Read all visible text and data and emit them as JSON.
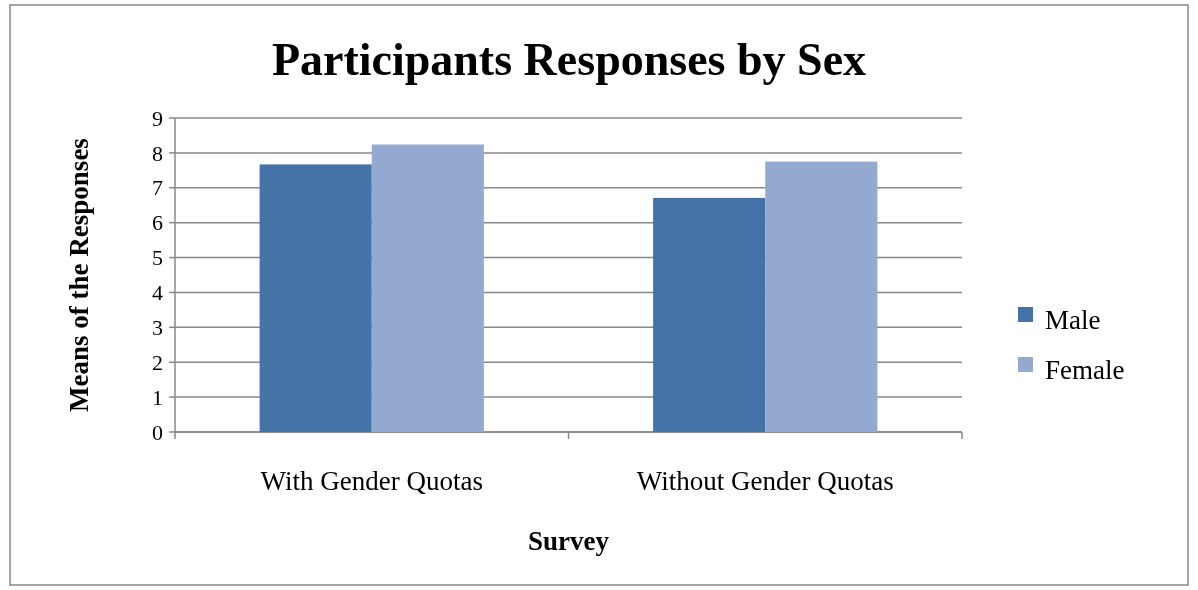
{
  "chart_data": {
    "type": "bar",
    "title": "Participants Responses by Sex",
    "xlabel": "Survey",
    "ylabel": "Means of the Responses",
    "categories": [
      "With Gender Quotas",
      "Without Gender Quotas"
    ],
    "series": [
      {
        "name": "Male",
        "color": "#4572a7",
        "values": [
          7.67,
          6.71
        ]
      },
      {
        "name": "Female",
        "color": "#94a9d0",
        "values": [
          8.24,
          7.75
        ]
      }
    ],
    "ylim": [
      0,
      9
    ],
    "yticks": [
      0,
      1,
      2,
      3,
      4,
      5,
      6,
      7,
      8,
      9
    ],
    "grid": "y",
    "legend": "right"
  }
}
